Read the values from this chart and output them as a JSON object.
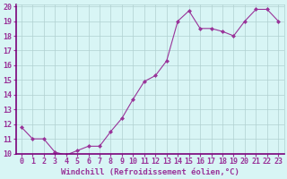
{
  "x": [
    0,
    1,
    2,
    3,
    4,
    5,
    6,
    7,
    8,
    9,
    10,
    11,
    12,
    13,
    14,
    15,
    16,
    17,
    18,
    19,
    20,
    21,
    22,
    23
  ],
  "y": [
    11.8,
    11.0,
    11.0,
    10.1,
    9.9,
    10.2,
    10.5,
    10.5,
    11.5,
    12.4,
    13.7,
    14.9,
    15.3,
    16.3,
    19.0,
    19.7,
    18.5,
    18.5,
    18.3,
    18.0,
    19.0,
    19.8,
    19.8,
    19.0
  ],
  "ylim": [
    10,
    20
  ],
  "xlim": [
    -0.5,
    23.5
  ],
  "yticks": [
    10,
    11,
    12,
    13,
    14,
    15,
    16,
    17,
    18,
    19,
    20
  ],
  "xticks": [
    0,
    1,
    2,
    3,
    4,
    5,
    6,
    7,
    8,
    9,
    10,
    11,
    12,
    13,
    14,
    15,
    16,
    17,
    18,
    19,
    20,
    21,
    22,
    23
  ],
  "line_color": "#993399",
  "marker_color": "#993399",
  "bg_color": "#d8f5f5",
  "grid_color": "#b0d0d0",
  "spine_color": "#7a007a",
  "xlabel": "Windchill (Refroidissement éolien,°C)",
  "xlabel_fontsize": 6.5,
  "tick_fontsize": 6.0,
  "marker": "D",
  "marker_size": 2.0,
  "line_width": 0.8
}
